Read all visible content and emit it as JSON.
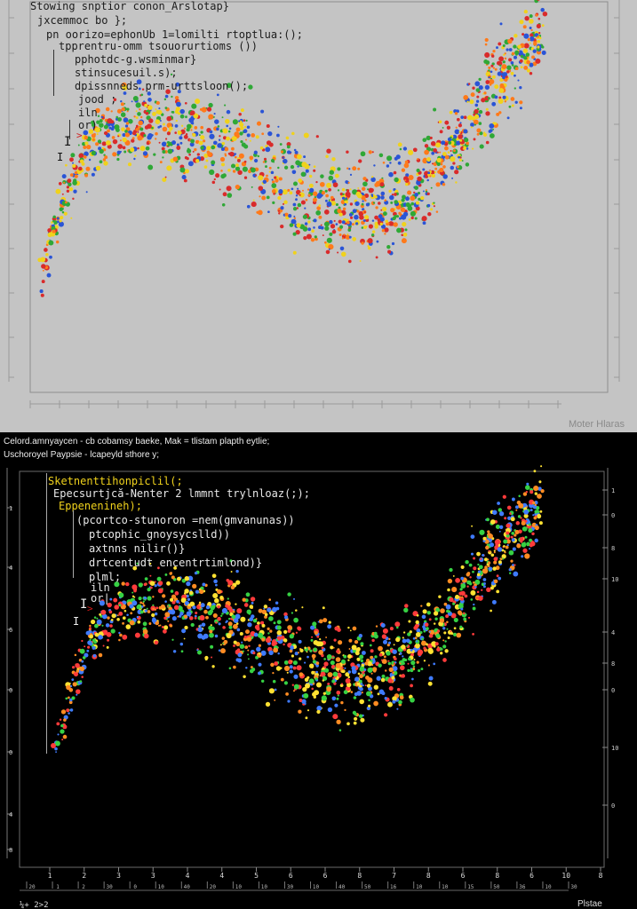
{
  "top_panel": {
    "title": "Stowing snptior conon_Arslotap}",
    "code_lines": [
      "jxcemmoc bo };",
      "pn oorizo=ephonUb 1=lomilti rtoptlua:();",
      "tpprentru-omm tsouorurtioms ())",
      "pphotdc-g.wsminmar}",
      "stinsucesuil.s);",
      "dpissnneds prm-urttsloon();",
      "jood ;",
      "iln",
      "or)"
    ],
    "caption": "Moter Hlaras"
  },
  "bottom_panel": {
    "header_line1": "Celord.amnyaycen - cb cobamsy baeke, Mak = tlistam plapth eytlie;",
    "header_line2": "Uschoroyel Paypsie - lcapeyld sthore y;",
    "code_lines": [
      "Sketnenttihonpiclil(;",
      "Epecsurtjcă-Nenter 2 lmmnt trylnloaz(;);",
      "Eppenenineh);",
      "(pcortco-stunoron =nem(gmvanunas))",
      "ptcophic_gnoysycslld))",
      "axtnns nilir()}",
      "drtcentudt encentrtimlond)}",
      "plml;",
      "iln",
      "or|"
    ],
    "left_ticks": [
      "1",
      "4",
      "6",
      "0",
      "0",
      "4",
      "8"
    ],
    "right_ticks": [
      "1",
      "0",
      "8",
      "10",
      "4",
      "8",
      "0",
      "10",
      "0"
    ],
    "x_ticks": [
      "1",
      "2",
      "3",
      "3",
      "4",
      "4",
      "5",
      "6",
      "6",
      "8",
      "7",
      "8",
      "6",
      "8",
      "6",
      "10",
      "8"
    ],
    "x_minor_ticks": [
      "20",
      "1",
      "2",
      "30",
      "0",
      "10",
      "40",
      "20",
      "10",
      "10",
      "30",
      "10",
      "40",
      "50",
      "16",
      "10",
      "10",
      "15",
      "50",
      "36",
      "10",
      "30"
    ],
    "footer_left": "¼+ 2>2",
    "footer_right": "Plstae"
  },
  "chart_data": [
    {
      "type": "scatter",
      "colors": [
        "#d92b2b",
        "#2a54d6",
        "#f0d21c",
        "#2fa836",
        "#ff7a1a"
      ],
      "trend_x": [
        0.0,
        0.05,
        0.1,
        0.15,
        0.2,
        0.25,
        0.3,
        0.35,
        0.4,
        0.45,
        0.5,
        0.55,
        0.6,
        0.65,
        0.7,
        0.75,
        0.8,
        0.85,
        0.9,
        0.95,
        1.0
      ],
      "trend_y": [
        0.18,
        0.45,
        0.6,
        0.66,
        0.68,
        0.66,
        0.64,
        0.62,
        0.58,
        0.53,
        0.47,
        0.42,
        0.4,
        0.4,
        0.42,
        0.47,
        0.56,
        0.68,
        0.8,
        0.9,
        1.0
      ]
    },
    {
      "type": "scatter",
      "colors": [
        "#ff3b3b",
        "#3f7bff",
        "#ffe132",
        "#36d143",
        "#ff8c22"
      ],
      "trend_x": [
        0.0,
        0.05,
        0.1,
        0.15,
        0.2,
        0.25,
        0.3,
        0.35,
        0.4,
        0.45,
        0.5,
        0.55,
        0.6,
        0.65,
        0.7,
        0.75,
        0.8,
        0.85,
        0.9,
        0.95,
        1.0
      ],
      "trend_y": [
        0.12,
        0.42,
        0.58,
        0.64,
        0.66,
        0.65,
        0.62,
        0.59,
        0.55,
        0.5,
        0.45,
        0.41,
        0.39,
        0.4,
        0.43,
        0.48,
        0.57,
        0.69,
        0.81,
        0.91,
        1.0
      ]
    }
  ]
}
